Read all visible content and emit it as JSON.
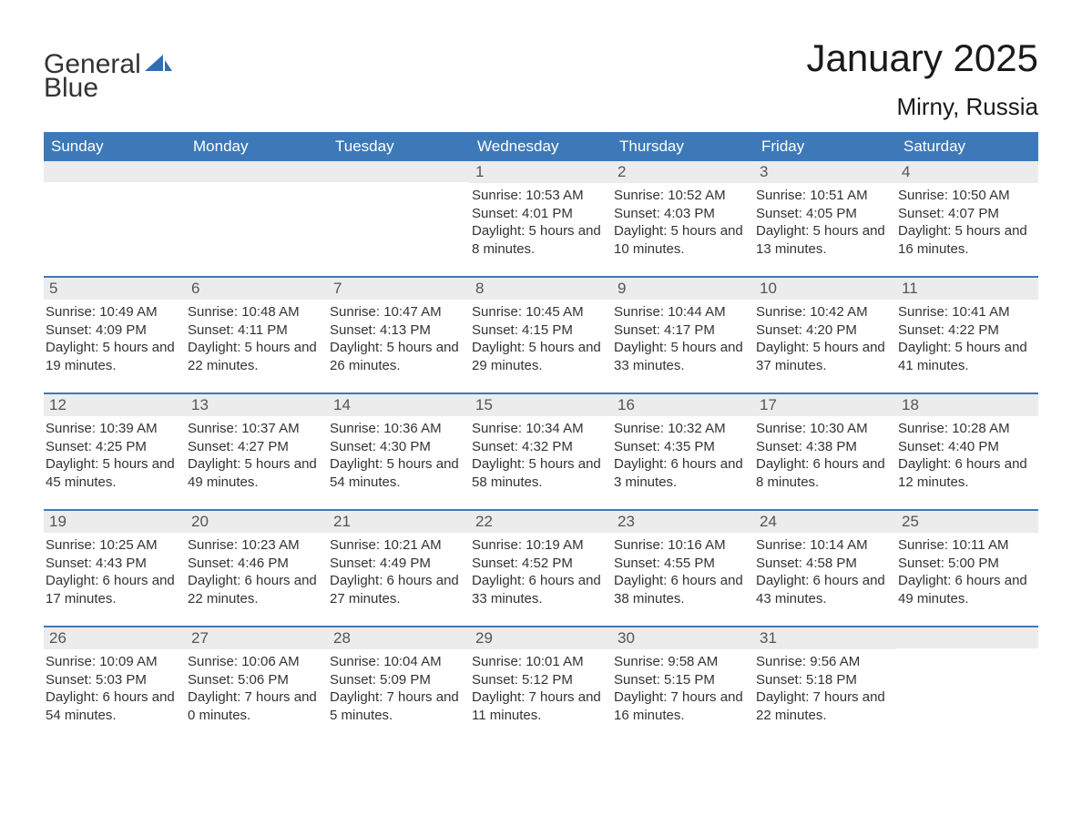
{
  "logo": {
    "word1": "General",
    "word2": "Blue"
  },
  "title": "January 2025",
  "location": "Mirny, Russia",
  "colors": {
    "header_bg": "#3d79b8",
    "header_text": "#ffffff",
    "daynum_bg": "#ececec",
    "border": "#3d79b8",
    "logo_blue": "#2f6fb3"
  },
  "weekdays": [
    "Sunday",
    "Monday",
    "Tuesday",
    "Wednesday",
    "Thursday",
    "Friday",
    "Saturday"
  ],
  "weeks": [
    [
      {
        "num": "",
        "sunrise": "",
        "sunset": "",
        "daylight": ""
      },
      {
        "num": "",
        "sunrise": "",
        "sunset": "",
        "daylight": ""
      },
      {
        "num": "",
        "sunrise": "",
        "sunset": "",
        "daylight": ""
      },
      {
        "num": "1",
        "sunrise": "Sunrise: 10:53 AM",
        "sunset": "Sunset: 4:01 PM",
        "daylight": "Daylight: 5 hours and 8 minutes."
      },
      {
        "num": "2",
        "sunrise": "Sunrise: 10:52 AM",
        "sunset": "Sunset: 4:03 PM",
        "daylight": "Daylight: 5 hours and 10 minutes."
      },
      {
        "num": "3",
        "sunrise": "Sunrise: 10:51 AM",
        "sunset": "Sunset: 4:05 PM",
        "daylight": "Daylight: 5 hours and 13 minutes."
      },
      {
        "num": "4",
        "sunrise": "Sunrise: 10:50 AM",
        "sunset": "Sunset: 4:07 PM",
        "daylight": "Daylight: 5 hours and 16 minutes."
      }
    ],
    [
      {
        "num": "5",
        "sunrise": "Sunrise: 10:49 AM",
        "sunset": "Sunset: 4:09 PM",
        "daylight": "Daylight: 5 hours and 19 minutes."
      },
      {
        "num": "6",
        "sunrise": "Sunrise: 10:48 AM",
        "sunset": "Sunset: 4:11 PM",
        "daylight": "Daylight: 5 hours and 22 minutes."
      },
      {
        "num": "7",
        "sunrise": "Sunrise: 10:47 AM",
        "sunset": "Sunset: 4:13 PM",
        "daylight": "Daylight: 5 hours and 26 minutes."
      },
      {
        "num": "8",
        "sunrise": "Sunrise: 10:45 AM",
        "sunset": "Sunset: 4:15 PM",
        "daylight": "Daylight: 5 hours and 29 minutes."
      },
      {
        "num": "9",
        "sunrise": "Sunrise: 10:44 AM",
        "sunset": "Sunset: 4:17 PM",
        "daylight": "Daylight: 5 hours and 33 minutes."
      },
      {
        "num": "10",
        "sunrise": "Sunrise: 10:42 AM",
        "sunset": "Sunset: 4:20 PM",
        "daylight": "Daylight: 5 hours and 37 minutes."
      },
      {
        "num": "11",
        "sunrise": "Sunrise: 10:41 AM",
        "sunset": "Sunset: 4:22 PM",
        "daylight": "Daylight: 5 hours and 41 minutes."
      }
    ],
    [
      {
        "num": "12",
        "sunrise": "Sunrise: 10:39 AM",
        "sunset": "Sunset: 4:25 PM",
        "daylight": "Daylight: 5 hours and 45 minutes."
      },
      {
        "num": "13",
        "sunrise": "Sunrise: 10:37 AM",
        "sunset": "Sunset: 4:27 PM",
        "daylight": "Daylight: 5 hours and 49 minutes."
      },
      {
        "num": "14",
        "sunrise": "Sunrise: 10:36 AM",
        "sunset": "Sunset: 4:30 PM",
        "daylight": "Daylight: 5 hours and 54 minutes."
      },
      {
        "num": "15",
        "sunrise": "Sunrise: 10:34 AM",
        "sunset": "Sunset: 4:32 PM",
        "daylight": "Daylight: 5 hours and 58 minutes."
      },
      {
        "num": "16",
        "sunrise": "Sunrise: 10:32 AM",
        "sunset": "Sunset: 4:35 PM",
        "daylight": "Daylight: 6 hours and 3 minutes."
      },
      {
        "num": "17",
        "sunrise": "Sunrise: 10:30 AM",
        "sunset": "Sunset: 4:38 PM",
        "daylight": "Daylight: 6 hours and 8 minutes."
      },
      {
        "num": "18",
        "sunrise": "Sunrise: 10:28 AM",
        "sunset": "Sunset: 4:40 PM",
        "daylight": "Daylight: 6 hours and 12 minutes."
      }
    ],
    [
      {
        "num": "19",
        "sunrise": "Sunrise: 10:25 AM",
        "sunset": "Sunset: 4:43 PM",
        "daylight": "Daylight: 6 hours and 17 minutes."
      },
      {
        "num": "20",
        "sunrise": "Sunrise: 10:23 AM",
        "sunset": "Sunset: 4:46 PM",
        "daylight": "Daylight: 6 hours and 22 minutes."
      },
      {
        "num": "21",
        "sunrise": "Sunrise: 10:21 AM",
        "sunset": "Sunset: 4:49 PM",
        "daylight": "Daylight: 6 hours and 27 minutes."
      },
      {
        "num": "22",
        "sunrise": "Sunrise: 10:19 AM",
        "sunset": "Sunset: 4:52 PM",
        "daylight": "Daylight: 6 hours and 33 minutes."
      },
      {
        "num": "23",
        "sunrise": "Sunrise: 10:16 AM",
        "sunset": "Sunset: 4:55 PM",
        "daylight": "Daylight: 6 hours and 38 minutes."
      },
      {
        "num": "24",
        "sunrise": "Sunrise: 10:14 AM",
        "sunset": "Sunset: 4:58 PM",
        "daylight": "Daylight: 6 hours and 43 minutes."
      },
      {
        "num": "25",
        "sunrise": "Sunrise: 10:11 AM",
        "sunset": "Sunset: 5:00 PM",
        "daylight": "Daylight: 6 hours and 49 minutes."
      }
    ],
    [
      {
        "num": "26",
        "sunrise": "Sunrise: 10:09 AM",
        "sunset": "Sunset: 5:03 PM",
        "daylight": "Daylight: 6 hours and 54 minutes."
      },
      {
        "num": "27",
        "sunrise": "Sunrise: 10:06 AM",
        "sunset": "Sunset: 5:06 PM",
        "daylight": "Daylight: 7 hours and 0 minutes."
      },
      {
        "num": "28",
        "sunrise": "Sunrise: 10:04 AM",
        "sunset": "Sunset: 5:09 PM",
        "daylight": "Daylight: 7 hours and 5 minutes."
      },
      {
        "num": "29",
        "sunrise": "Sunrise: 10:01 AM",
        "sunset": "Sunset: 5:12 PM",
        "daylight": "Daylight: 7 hours and 11 minutes."
      },
      {
        "num": "30",
        "sunrise": "Sunrise: 9:58 AM",
        "sunset": "Sunset: 5:15 PM",
        "daylight": "Daylight: 7 hours and 16 minutes."
      },
      {
        "num": "31",
        "sunrise": "Sunrise: 9:56 AM",
        "sunset": "Sunset: 5:18 PM",
        "daylight": "Daylight: 7 hours and 22 minutes."
      },
      {
        "num": "",
        "sunrise": "",
        "sunset": "",
        "daylight": ""
      }
    ]
  ]
}
